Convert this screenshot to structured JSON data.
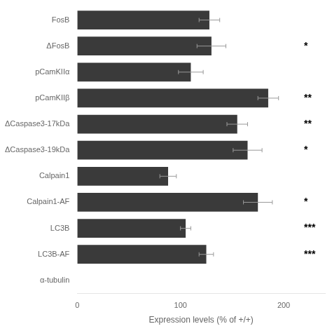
{
  "chart_data": {
    "type": "bar",
    "orientation": "horizontal",
    "categories": [
      "FosB",
      "ΔFosB",
      "pCamKIIα",
      "pCamKIIβ",
      "ΔCaspase3-17kDa",
      "ΔCaspase3-19kDa",
      "Calpain1",
      "Calpain1-AF",
      "LC3B",
      "LC3B-AF",
      "α-tubulin"
    ],
    "values": [
      128,
      130,
      110,
      185,
      155,
      165,
      88,
      175,
      105,
      125,
      null
    ],
    "errors": [
      10,
      14,
      12,
      10,
      10,
      14,
      8,
      14,
      5,
      7,
      null
    ],
    "annotations": [
      {
        "category": "ΔFosB",
        "text": "*"
      },
      {
        "category": "pCamKIIβ",
        "text": "**"
      },
      {
        "category": "ΔCaspase3-17kDa",
        "text": "**"
      },
      {
        "category": "ΔCaspase3-19kDa",
        "text": "*"
      },
      {
        "category": "Calpain1-AF",
        "text": "*"
      },
      {
        "category": "LC3B",
        "text": "***"
      },
      {
        "category": "LC3B-AF",
        "text": "***"
      }
    ],
    "color": "#3a3a3a",
    "xlabel": "Expression levels (% of +/+)",
    "xlim": [
      0,
      240
    ],
    "xticks": [
      0,
      100,
      200
    ],
    "grid": false,
    "legend": null
  }
}
